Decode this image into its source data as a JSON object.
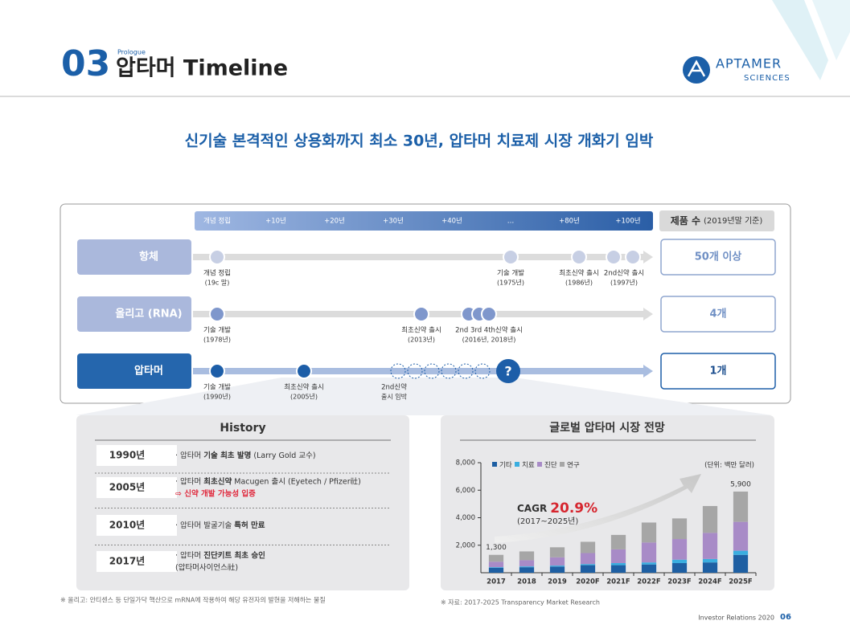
{
  "header": {
    "section_number": "03",
    "prologue": "Prologue",
    "title": "압타머 Timeline"
  },
  "logo": {
    "name": "APTAMER",
    "sub": "SCIENCES"
  },
  "headline": "신기술 본격적인 상용화까지 최소 30년, 압타머 치료제 시장 개화기 임박",
  "timeline": {
    "axis_labels": [
      "개념 정립",
      "+10년",
      "+20년",
      "+30년",
      "+40년",
      "…",
      "+80년",
      "+100년"
    ],
    "count_header": "제품 수",
    "count_note": "(2019년말 기준)",
    "rows": [
      {
        "name": "항체",
        "count": "50개 이상",
        "events": [
          {
            "label": "개념 정립",
            "sub": "(19c 말)"
          },
          {
            "label": "기술 개발",
            "sub": "(1975년)"
          },
          {
            "label": "최초신약 출시",
            "sub": "(1986년)"
          },
          {
            "label": "2nd신약 출시",
            "sub": "(1997년)"
          }
        ]
      },
      {
        "name": "올리고 (RNA)",
        "count": "4개",
        "events": [
          {
            "label": "기술 개발",
            "sub": "(1978년)"
          },
          {
            "label": "최초신약 출시",
            "sub": "(2013년)"
          },
          {
            "label": "2nd 3rd 4th신약 출시",
            "sub": "(2016년, 2018년)"
          }
        ]
      },
      {
        "name": "압타머",
        "count": "1개",
        "marker": "?",
        "events": [
          {
            "label": "기술 개발",
            "sub": "(1990년)"
          },
          {
            "label": "최초신약 출시",
            "sub": "(2005년)"
          },
          {
            "label": "2nd신약",
            "sub": "출시 임박"
          }
        ]
      }
    ]
  },
  "history": {
    "title": "History",
    "items": [
      {
        "year": "1990년",
        "lines": [
          [
            {
              "text": "· 압타머 "
            },
            {
              "text": "기술 최초 발명",
              "bold": true
            },
            {
              "text": " (Larry Gold 교수)"
            }
          ]
        ]
      },
      {
        "year": "2005년",
        "lines": [
          [
            {
              "text": "· 압타머 "
            },
            {
              "text": "최초신약",
              "bold": true
            },
            {
              "text": " Macugen 출시 (Eyetech / Pfizer社)"
            }
          ],
          [
            {
              "text": "⇨ 신약 개발 가능성 입증",
              "bold": true,
              "color": "#e0283c"
            }
          ]
        ]
      },
      {
        "year": "2010년",
        "lines": [
          [
            {
              "text": "· 압타머 발굴기술 "
            },
            {
              "text": "특허 만료",
              "bold": true
            }
          ]
        ]
      },
      {
        "year": "2017년",
        "lines": [
          [
            {
              "text": "· 압타머 "
            },
            {
              "text": "진단키트 최초 승인",
              "bold": true
            }
          ],
          [
            {
              "text": "(압타머사이언스社)"
            }
          ]
        ]
      }
    ]
  },
  "chart_data": {
    "type": "bar",
    "stacked": true,
    "title": "글로벌 압타머 시장 전망",
    "unit": "(단위: 백만 달러)",
    "categories": [
      "2017",
      "2018",
      "2019",
      "2020F",
      "2021F",
      "2022F",
      "2023F",
      "2024F",
      "2025F"
    ],
    "series": [
      {
        "name": "기타",
        "color": "#1e5fa3",
        "values": [
          350,
          400,
          450,
          550,
          550,
          600,
          700,
          750,
          1300
        ]
      },
      {
        "name": "치료",
        "color": "#3aaee0",
        "values": [
          50,
          60,
          70,
          80,
          150,
          150,
          250,
          250,
          300
        ]
      },
      {
        "name": "진단",
        "color": "#a88bc7",
        "values": [
          400,
          450,
          600,
          800,
          1000,
          1450,
          1500,
          1900,
          2100
        ]
      },
      {
        "name": "연구",
        "color": "#a6a6a6",
        "values": [
          500,
          640,
          730,
          820,
          1050,
          1450,
          1500,
          1950,
          2200
        ]
      }
    ],
    "ylim": [
      0,
      8000
    ],
    "yticks": [
      {
        "value": 2000,
        "label": "2,000"
      },
      {
        "value": 4000,
        "label": "4,000"
      },
      {
        "value": 6000,
        "label": "6,000"
      },
      {
        "value": 8000,
        "label": "8,000"
      }
    ],
    "total_labels": [
      "1,300",
      null,
      null,
      null,
      null,
      null,
      null,
      null,
      "5,900"
    ],
    "annotation": {
      "cagr_label": "CAGR",
      "cagr_value": "20.9%",
      "period": "(2017~2025년)"
    }
  },
  "footnotes": {
    "left": "※ 올리고: 안티센스 등 단일가닥 핵산으로 mRNA에 작용하여 해당 유전자의 발현을 저해하는 물질",
    "right": "※ 자료: 2017-2025 Transparency Market Research"
  },
  "footer": {
    "text": "Investor Relations 2020",
    "page": "06"
  }
}
